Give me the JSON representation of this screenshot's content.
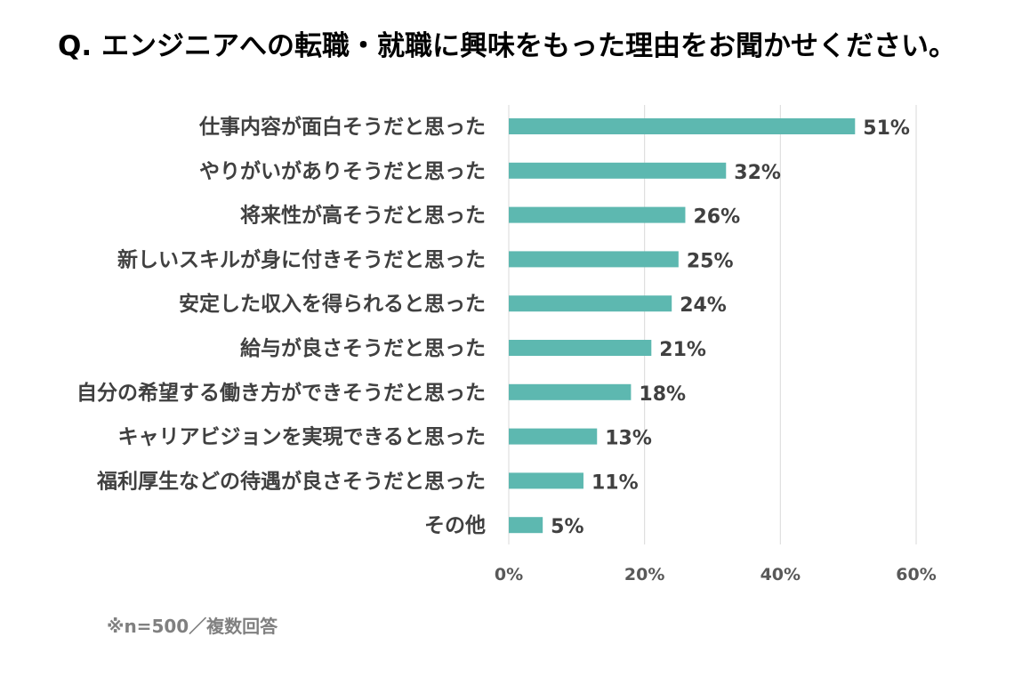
{
  "title": "Q. エンジニアへの転職・就職に興味をもった理由をお聞かせください。",
  "footnote": "※n=500／複数回答",
  "colors": {
    "bar": "#5db8b0",
    "label": "#404040",
    "axis_label": "#595959",
    "grid": "#d9d9d9"
  },
  "chart_data": {
    "type": "bar",
    "orientation": "horizontal",
    "categories": [
      "仕事内容が面白そうだと思った",
      "やりがいがありそうだと思った",
      "将来性が高そうだと思った",
      "新しいスキルが身に付きそうだと思った",
      "安定した収入を得られると思った",
      "給与が良さそうだと思った",
      "自分の希望する働き方ができそうだと思った",
      "キャリアビジョンを実現できると思った",
      "福利厚生などの待遇が良さそうだと思った",
      "その他"
    ],
    "values": [
      51,
      32,
      26,
      25,
      24,
      21,
      18,
      13,
      11,
      5
    ],
    "value_labels": [
      "51%",
      "32%",
      "26%",
      "25%",
      "24%",
      "21%",
      "18%",
      "13%",
      "11%",
      "5%"
    ],
    "xlim": [
      0,
      60
    ],
    "xticks": [
      0,
      20,
      40,
      60
    ],
    "xtick_labels": [
      "0%",
      "20%",
      "40%",
      "60%"
    ],
    "grid": true
  }
}
